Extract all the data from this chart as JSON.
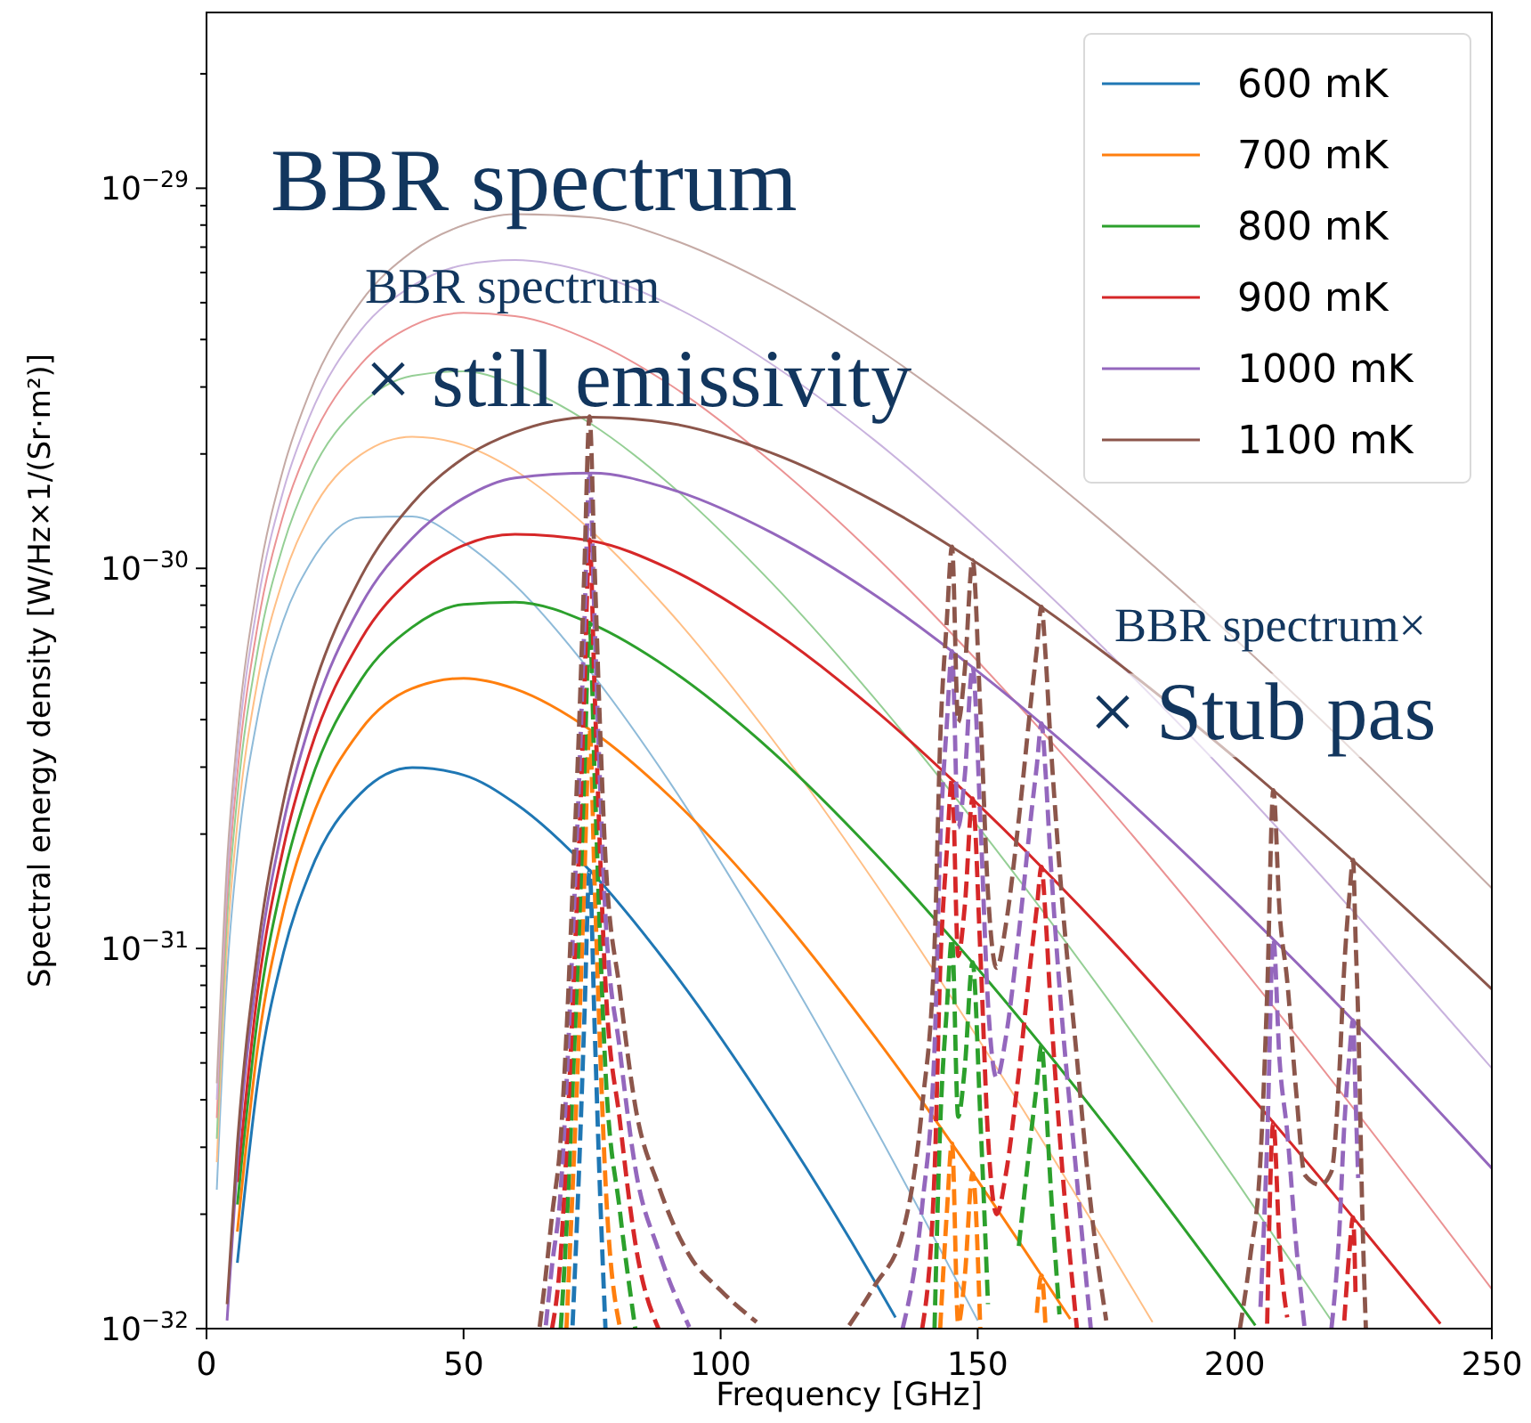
{
  "chart_data": {
    "type": "line",
    "log": "y",
    "legend": "top right",
    "xlabel": "Frequency [GHz]",
    "ylabel": "Spectral energy density [W/Hz×1/(Sr·m²)]",
    "annotations": [
      "BBR spectrum",
      "BBR spectrum",
      "× still emissivity",
      "BBR spectrum×",
      "× Stub pas"
    ],
    "xlim": [
      0,
      250
    ],
    "xticks": [
      0,
      50,
      100,
      150,
      200,
      250
    ],
    "ylim": [
      1e-32,
      2.9e-29
    ],
    "yticks": [
      {
        "value": 1e-32,
        "label": "10$^{−32}$"
      },
      {
        "value": 2e-32,
        "label": null
      },
      {
        "value": 3e-32,
        "label": null
      },
      {
        "value": 4e-32,
        "label": null
      },
      {
        "value": 5e-32,
        "label": null
      },
      {
        "value": 6e-32,
        "label": null
      },
      {
        "value": 7e-32,
        "label": null
      },
      {
        "value": 8e-32,
        "label": null
      },
      {
        "value": 9e-32,
        "label": null
      },
      {
        "value": 1e-31,
        "label": "10$^{−31}$"
      },
      {
        "value": 2e-31,
        "label": null
      },
      {
        "value": 3e-31,
        "label": null
      },
      {
        "value": 4e-31,
        "label": null
      },
      {
        "value": 5e-31,
        "label": null
      },
      {
        "value": 6e-31,
        "label": null
      },
      {
        "value": 7e-31,
        "label": null
      },
      {
        "value": 8e-31,
        "label": null
      },
      {
        "value": 9e-31,
        "label": null
      },
      {
        "value": 1e-30,
        "label": "10$^{−30}$"
      },
      {
        "value": 2e-30,
        "label": null
      },
      {
        "value": 3e-30,
        "label": null
      },
      {
        "value": 4e-30,
        "label": null
      },
      {
        "value": 5e-30,
        "label": null
      },
      {
        "value": 6e-30,
        "label": null
      },
      {
        "value": 7e-30,
        "label": null
      },
      {
        "value": 8e-30,
        "label": null
      },
      {
        "value": 9e-30,
        "label": null
      },
      {
        "value": 1e-29,
        "label": "10$^{−29}$"
      },
      {
        "value": 2e-29,
        "label": null
      }
    ],
    "series": [
      {
        "color": "#8fbbd9",
        "line_style": "solid",
        "x": [
          2,
          4,
          6,
          10,
          15,
          20,
          30,
          40,
          50,
          60,
          75,
          90,
          110,
          130,
          150
        ],
        "values": [
          2.32e-32,
          8.53e-32,
          1.77e-31,
          4.11e-31,
          7.33e-31,
          1.02e-30,
          1.36e-30,
          1.37e-30,
          1.17e-30,
          9.04e-31,
          5.28e-31,
          2.75e-31,
          1.01e-31,
          3.38e-32,
          1.05e-32
        ]
      },
      {
        "color": "#ffbf86",
        "line_style": "solid",
        "x": [
          2,
          4,
          6,
          10,
          15,
          20,
          30,
          40,
          50,
          60,
          75,
          90,
          110,
          130,
          150,
          175,
          184
        ],
        "values": [
          2.74e-32,
          1.02e-31,
          2.13e-31,
          5.11e-31,
          9.44e-31,
          1.37e-30,
          1.99e-30,
          2.22e-30,
          2.11e-30,
          1.81e-30,
          1.25e-30,
          7.71e-31,
          3.56e-31,
          1.49e-31,
          5.81e-32,
          1.66e-32,
          1.04e-32
        ]
      },
      {
        "color": "#95cf95",
        "line_style": "solid",
        "x": [
          2,
          4,
          6,
          10,
          15,
          20,
          30,
          40,
          50,
          60,
          75,
          90,
          110,
          130,
          150,
          175,
          200,
          219
        ],
        "values": [
          3.16e-32,
          1.19e-31,
          2.51e-31,
          6.12e-31,
          1.16e-30,
          1.74e-30,
          2.69e-30,
          3.21e-30,
          3.3e-30,
          3.05e-30,
          2.39e-30,
          1.67e-30,
          9.14e-31,
          4.54e-31,
          2.1e-31,
          7.45e-32,
          2.48e-32,
          1.04e-32
        ]
      },
      {
        "color": "#eb9394",
        "line_style": "solid",
        "x": [
          2,
          4,
          6,
          10,
          15,
          20,
          30,
          40,
          50,
          60,
          75,
          90,
          110,
          130,
          150,
          175,
          200,
          225,
          250
        ],
        "values": [
          3.58e-32,
          1.36e-31,
          2.88e-31,
          7.14e-31,
          1.39e-30,
          2.11e-30,
          3.44e-30,
          4.34e-30,
          4.7e-30,
          4.61e-30,
          3.96e-30,
          3.05e-30,
          1.9e-30,
          1.08e-30,
          5.7e-31,
          2.39e-31,
          9.4e-32,
          3.52e-32,
          1.27e-32
        ]
      },
      {
        "color": "#c9b3de",
        "line_style": "solid",
        "x": [
          2,
          4,
          6,
          10,
          15,
          20,
          30,
          40,
          50,
          60,
          75,
          90,
          110,
          130,
          150,
          175,
          200,
          225,
          250
        ],
        "values": [
          4e-32,
          1.52e-31,
          3.26e-31,
          8.18e-31,
          1.61e-30,
          2.5e-30,
          4.23e-30,
          5.53e-30,
          6.28e-30,
          6.47e-30,
          5.97e-30,
          4.95e-30,
          3.44e-30,
          2.17e-30,
          1.27e-30,
          6.08e-31,
          2.74e-31,
          1.17e-31,
          4.84e-32
        ]
      },
      {
        "color": "#c5aaa5",
        "line_style": "solid",
        "x": [
          2,
          4,
          6,
          10,
          15,
          20,
          30,
          40,
          50,
          60,
          75,
          90,
          110,
          130,
          150,
          175,
          200,
          225,
          250
        ],
        "values": [
          4.42e-32,
          1.69e-31,
          3.63e-31,
          9.2e-31,
          1.84e-30,
          2.89e-30,
          5.02e-30,
          6.81e-30,
          8e-30,
          8.55e-30,
          8.38e-30,
          7.38e-30,
          5.56e-30,
          3.82e-30,
          2.44e-30,
          1.3e-30,
          6.53e-31,
          3.12e-31,
          1.44e-31
        ]
      },
      {
        "name": "600 mK",
        "color": "#1f77b4",
        "line_style": "solid",
        "x": [
          6,
          10,
          15,
          20,
          30,
          40,
          50,
          60,
          75,
          90,
          110,
          130,
          134
        ],
        "values": [
          1.49e-32,
          4.48e-32,
          9.77e-32,
          1.57e-31,
          2.56e-31,
          2.99e-31,
          2.86e-31,
          2.41e-31,
          1.58e-31,
          8.97e-32,
          3.66e-32,
          1.33e-32,
          1.07e-32
        ]
      },
      {
        "name": "700 mK",
        "color": "#ff7f0e",
        "line_style": "solid",
        "x": [
          6,
          10,
          15,
          20,
          30,
          40,
          50,
          60,
          75,
          90,
          110,
          130,
          150,
          168
        ],
        "values": [
          1.8e-32,
          5.56e-32,
          1.26e-31,
          2.11e-31,
          3.76e-31,
          4.83e-31,
          5.14e-31,
          4.82e-31,
          3.73e-31,
          2.52e-31,
          1.29e-31,
          5.86e-32,
          2.45e-32,
          1.06e-32
        ]
      },
      {
        "name": "800 mK",
        "color": "#2ca02c",
        "line_style": "solid",
        "x": [
          6,
          10,
          15,
          20,
          30,
          40,
          50,
          60,
          75,
          90,
          110,
          130,
          150,
          175,
          200,
          204
        ],
        "values": [
          2.12e-32,
          6.67e-32,
          1.55e-31,
          2.68e-31,
          5.08e-31,
          7e-31,
          8.04e-31,
          8.15e-31,
          7.13e-31,
          5.44e-31,
          3.3e-31,
          1.78e-31,
          8.85e-32,
          3.4e-32,
          1.21e-32,
          1.02e-32
        ]
      },
      {
        "name": "900 mK",
        "color": "#d62728",
        "line_style": "solid",
        "x": [
          6,
          10,
          15,
          20,
          30,
          40,
          50,
          60,
          75,
          90,
          110,
          130,
          150,
          175,
          200,
          225,
          240
        ],
        "values": [
          2.43e-32,
          7.78e-32,
          1.85e-31,
          3.26e-31,
          6.49e-31,
          9.44e-31,
          1.15e-30,
          1.23e-30,
          1.18e-30,
          9.98e-31,
          6.87e-31,
          4.24e-31,
          2.4e-31,
          1.09e-31,
          4.58e-32,
          1.82e-32,
          1.03e-32
        ]
      },
      {
        "name": "1000 mK",
        "color": "#9467bd",
        "line_style": "solid",
        "x": [
          4,
          6,
          10,
          15,
          20,
          30,
          40,
          50,
          60,
          75,
          90,
          110,
          130,
          150,
          175,
          200,
          225,
          250
        ],
        "values": [
          1.05e-32,
          2.75e-32,
          8.91e-32,
          2.15e-31,
          3.85e-31,
          7.98e-31,
          1.2e-30,
          1.53e-30,
          1.73e-30,
          1.78e-30,
          1.62e-30,
          1.24e-30,
          8.51e-31,
          5.36e-31,
          2.77e-31,
          1.33e-31,
          6.07e-32,
          2.64e-32
        ]
      },
      {
        "name": "1100 mK",
        "color": "#8c564b",
        "line_style": "solid",
        "x": [
          4,
          6,
          10,
          15,
          20,
          30,
          40,
          50,
          60,
          75,
          90,
          110,
          130,
          150,
          175,
          200,
          225,
          250
        ],
        "values": [
          1.16e-32,
          3.06e-32,
          1e-31,
          2.45e-31,
          4.46e-31,
          9.48e-31,
          1.48e-30,
          1.95e-30,
          2.28e-30,
          2.5e-30,
          2.41e-30,
          2.01e-30,
          1.5e-30,
          1.03e-30,
          5.94e-31,
          3.18e-31,
          1.61e-31,
          7.82e-32
        ]
      },
      {
        "color": "#1f77b4",
        "line_style": "dashed",
        "x": [
          71.2,
          72.5,
          73.5,
          74.5,
          75.5,
          76.5,
          77.6
        ],
        "values": [
          1.02e-32,
          2.7e-32,
          6.58e-32,
          1.6e-31,
          6.17e-32,
          2.37e-32,
          1e-32
        ]
      },
      {
        "color": "#ff7f0e",
        "line_style": "dashed",
        "x": [
          70,
          71.2,
          72.5,
          73.5,
          74.5,
          75.5,
          76.5,
          77.6,
          80.4,
          110,
          142.7,
          144,
          145,
          146.2,
          147.5,
          149,
          150.5,
          156,
          161.5,
          162.4,
          163.2
        ],
        "values": [
          1e-32,
          2.32e-32,
          6.24e-32,
          1.53e-31,
          3.78e-31,
          1.47e-31,
          5.73e-32,
          2.44e-32,
          1.01e-32,
          null,
          1e-32,
          2.02e-32,
          3.07e-32,
          1.03e-32,
          1.38e-32,
          2.56e-32,
          1e-32,
          null,
          1.1e-32,
          1.38e-32,
          1.01e-32
        ]
      },
      {
        "color": "#2ca02c",
        "line_style": "dashed",
        "x": [
          68.9,
          70,
          71.2,
          72.5,
          73.5,
          74.5,
          75.5,
          76.5,
          77.6,
          80.4,
          83.4,
          110,
          141.6,
          142.7,
          144,
          145,
          146.2,
          147.5,
          149,
          150.5,
          152,
          155.5,
          158,
          160.5,
          161.5,
          162.4,
          163.2,
          164,
          165.9
        ],
        "values": [
          1e-32,
          1.82e-32,
          4.31e-32,
          1.17e-31,
          2.9e-31,
          7.19e-31,
          2.82e-31,
          1.11e-31,
          4.78e-32,
          2.04e-32,
          1e-32,
          null,
          1e-32,
          3.4e-32,
          6.95e-32,
          1.06e-31,
          3.61e-32,
          4.88e-32,
          9.2e-32,
          3.62e-32,
          1.16e-32,
          null,
          1.65e-32,
          3.37e-32,
          4.38e-32,
          5.56e-32,
          4.09e-32,
          2.62e-32,
          1.09e-32
        ]
      },
      {
        "color": "#d62728",
        "line_style": "dashed",
        "x": [
          67.2,
          68.9,
          70,
          71.2,
          72.5,
          73.5,
          74.5,
          75.5,
          76.5,
          77.6,
          80.4,
          83.4,
          87.9,
          110,
          139.2,
          141.6,
          142.7,
          144,
          145,
          146.2,
          147.5,
          149,
          150.5,
          152,
          153.7,
          155.5,
          158,
          160.5,
          161.5,
          162.4,
          163.2,
          164,
          165.9,
          169.3,
          190,
          206.3,
          207.5,
          208.7,
          210.2,
          216.6,
          221.3,
          222.3,
          223,
          223.5
        ],
        "values": [
          1e-32,
          1.57e-32,
          2.92e-32,
          6.98e-32,
          1.91e-31,
          4.78e-31,
          1.19e-30,
          4.71e-31,
          1.86e-31,
          8.07e-32,
          3.52e-32,
          1.68e-32,
          1e-32,
          null,
          1e-32,
          2.56e-32,
          8.79e-32,
          1.81e-31,
          2.79e-31,
          9.55e-32,
          1.3e-31,
          2.48e-31,
          9.86e-32,
          3.2e-32,
          2e-32,
          2.56e-32,
          4.73e-32,
          9.79e-32,
          1.28e-31,
          1.64e-31,
          1.21e-31,
          7.82e-32,
          3.28e-32,
          1e-32,
          null,
          1.03e-32,
          3.48e-32,
          1.67e-32,
          1.07e-32,
          null,
          1.05e-32,
          1.6e-32,
          1.96e-32,
          1.22e-32
        ]
      },
      {
        "color": "#9467bd",
        "line_style": "dashed",
        "x": [
          66,
          67.2,
          68.9,
          70,
          71.2,
          72.5,
          73.5,
          74.5,
          75.5,
          76.5,
          77.6,
          80.4,
          83.4,
          87.9,
          93.9,
          110,
          135.4,
          139.2,
          141.6,
          142.7,
          144,
          145,
          146.2,
          147.5,
          149,
          150.5,
          152,
          153.7,
          155.5,
          158,
          160.5,
          161.5,
          162.4,
          163.2,
          164,
          165.9,
          169.3,
          172,
          190,
          205,
          206.3,
          207.5,
          208.7,
          210.2,
          212,
          213.6,
          216.6,
          218.8,
          220.3,
          221.3,
          222.3,
          223,
          223.5,
          224
        ],
        "values": [
          1.02e-32,
          1.46e-32,
          2.32e-32,
          4.32e-32,
          1.04e-31,
          2.84e-31,
          7.13e-31,
          1.79e-30,
          7.1e-31,
          2.82e-31,
          1.22e-31,
          5.4e-32,
          2.65e-32,
          1.61e-32,
          1.01e-32,
          null,
          1e-32,
          2.1e-32,
          5.46e-32,
          1.88e-31,
          3.91e-31,
          6.05e-31,
          2.08e-31,
          2.86e-31,
          5.5e-31,
          2.21e-31,
          7.19e-32,
          4.56e-32,
          5.87e-32,
          1.1e-31,
          2.31e-31,
          3.03e-31,
          3.91e-31,
          2.9e-31,
          1.87e-31,
          7.96e-32,
          2.46e-32,
          1e-32,
          null,
          1.14e-32,
          3.1e-32,
          1.06e-31,
          5.11e-32,
          3.29e-32,
          1.63e-32,
          1e-32,
          null,
          1e-32,
          1.77e-32,
          3.42e-32,
          5.25e-32,
          6.47e-32,
          4.02e-32,
          2.49e-32
        ]
      },
      {
        "color": "#8c564b",
        "line_style": "dashed",
        "x": [
          64.8,
          66,
          67.2,
          68.9,
          70,
          71.2,
          72.5,
          73.5,
          74.5,
          75.5,
          76.5,
          77.6,
          80.4,
          83.4,
          87.9,
          93.9,
          100,
          107,
          116,
          125,
          130,
          135.4,
          139.2,
          141.6,
          142.7,
          144,
          145,
          146.2,
          147.5,
          149,
          150.5,
          152,
          153.7,
          155.5,
          158,
          160.5,
          161.5,
          162.4,
          163.2,
          164,
          165.9,
          169.3,
          172,
          175,
          190,
          201,
          203,
          205,
          206.3,
          207.5,
          208.7,
          210.2,
          212,
          213.6,
          216.6,
          218.8,
          220.3,
          221.3,
          222.3,
          223,
          223.5,
          224,
          224.8,
          225.5
        ],
        "values": [
          1.01e-32,
          1.39e-32,
          1.98e-32,
          3.17e-32,
          5.93e-32,
          1.43e-31,
          3.95e-31,
          9.95e-31,
          2.51e-30,
          9.98e-31,
          3.97e-31,
          1.73e-31,
          7.73e-32,
          3.85e-32,
          2.38e-32,
          1.56e-32,
          1.26e-32,
          1.04e-32,
          null,
          1.02e-32,
          1.3e-32,
          1.79e-32,
          3.84e-32,
          1.01e-31,
          3.51e-31,
          7.31e-31,
          1.14e-30,
          3.94e-31,
          5.43e-31,
          1.05e-30,
          4.25e-31,
          1.4e-31,
          8.89e-32,
          1.16e-31,
          2.19e-31,
          4.65e-31,
          6.14e-31,
          7.92e-31,
          5.89e-31,
          3.83e-31,
          1.64e-31,
          5.14e-32,
          2.11e-32,
          1.05e-32,
          null,
          1e-32,
          1.54e-32,
          2.79e-32,
          7.6e-32,
          2.61e-31,
          1.26e-31,
          8.22e-32,
          4.11e-32,
          2.54e-32,
          2.39e-32,
          2.59e-32,
          4.61e-32,
          8.95e-32,
          1.38e-31,
          1.71e-31,
          1.06e-31,
          6.61e-32,
          2.04e-32,
          1e-32
        ]
      }
    ]
  }
}
